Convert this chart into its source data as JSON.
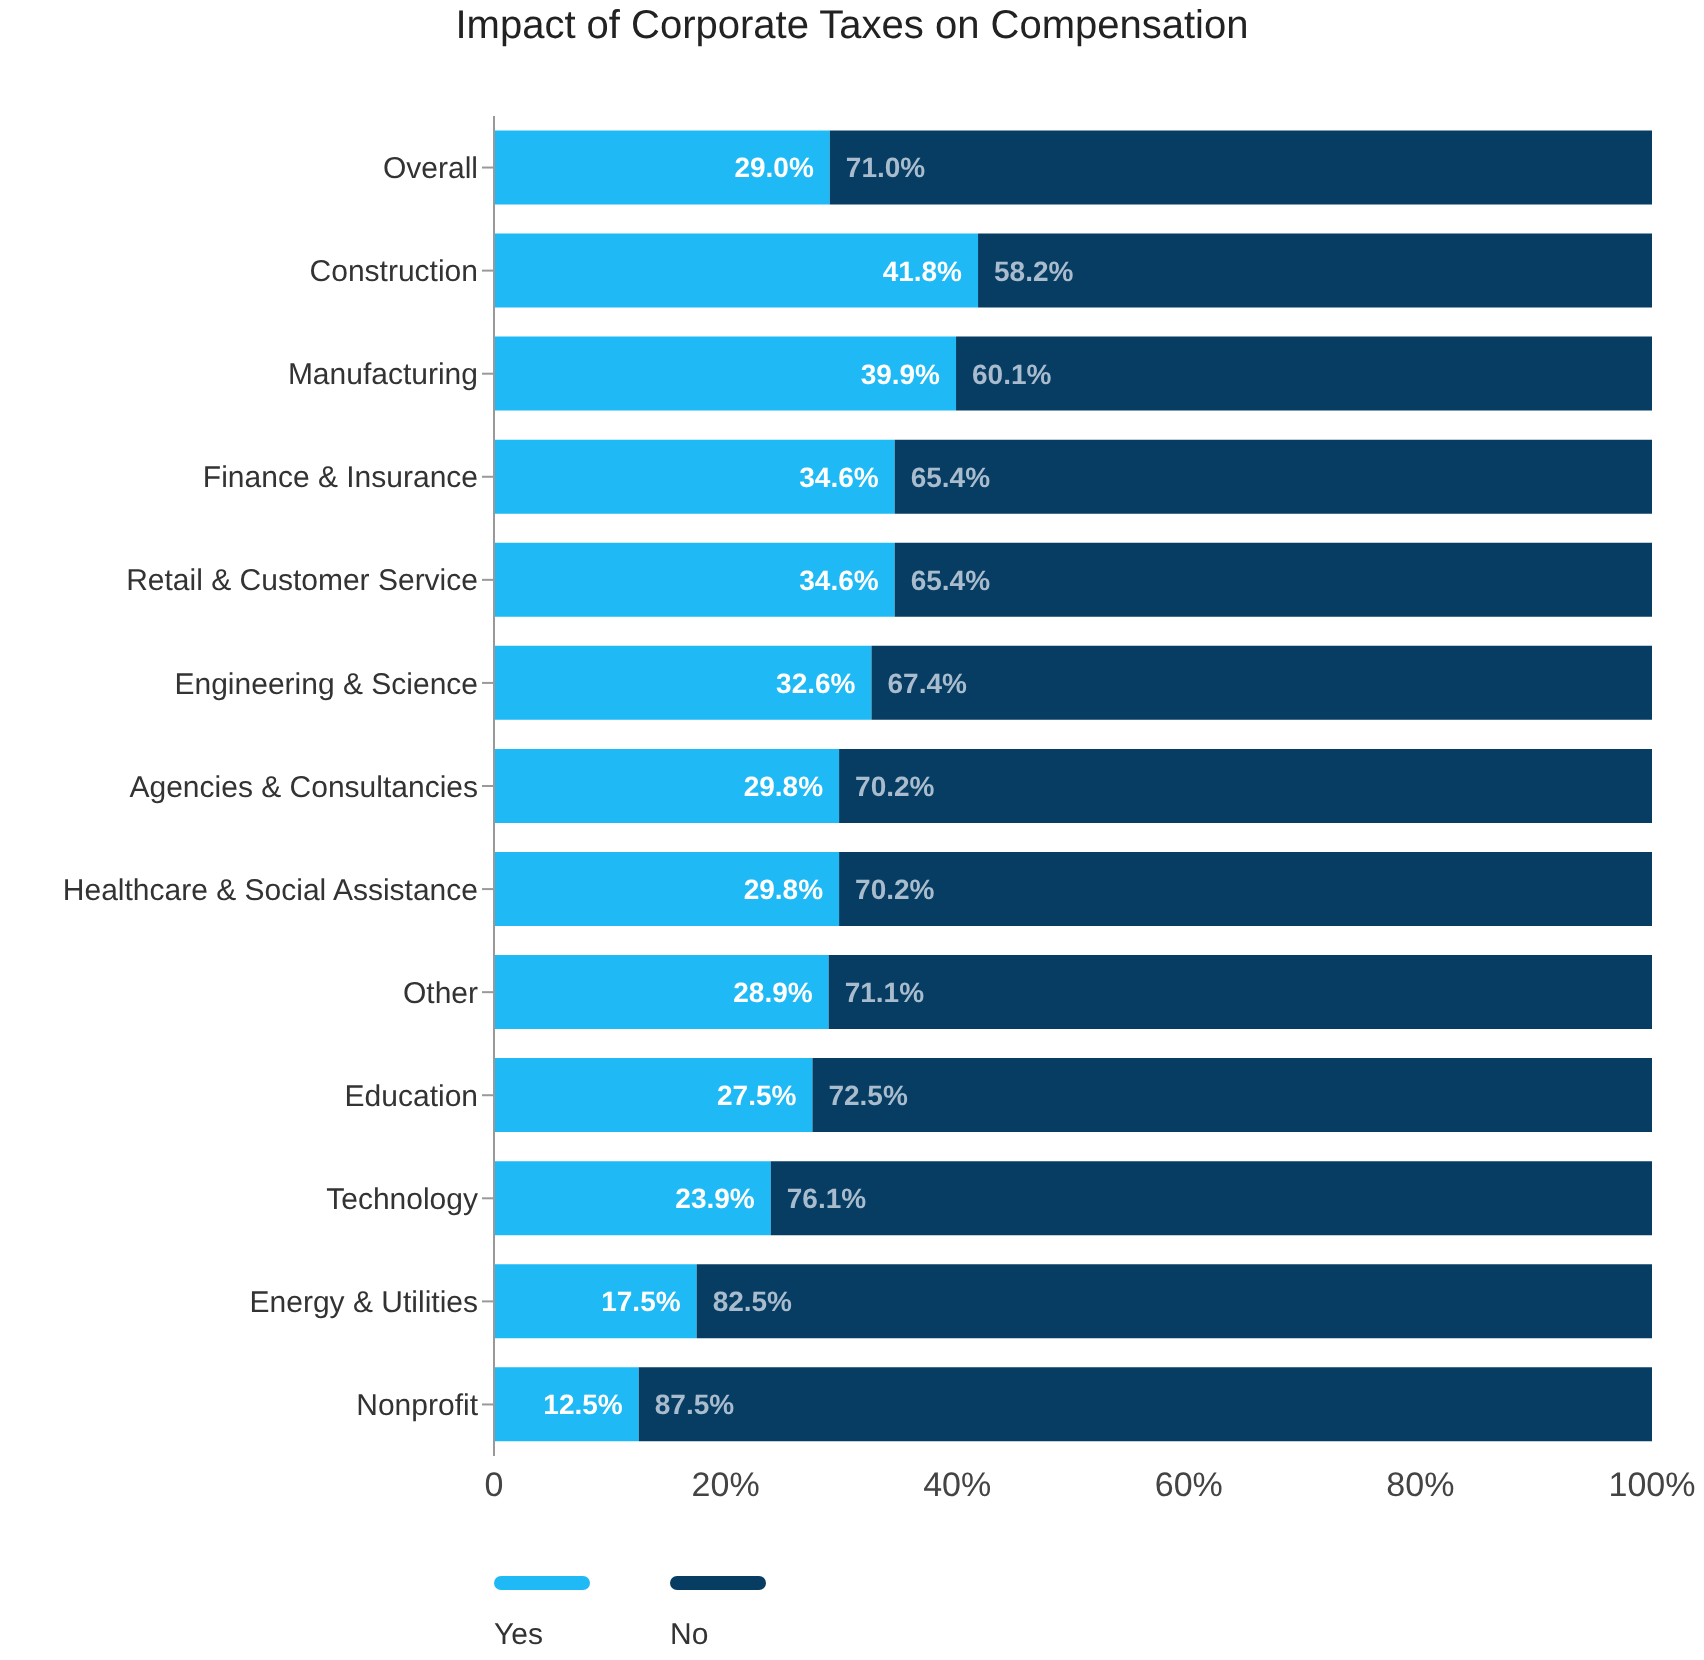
{
  "chart_data": {
    "type": "bar",
    "orientation": "horizontal",
    "stacked": true,
    "title": "Impact of Corporate Taxes on Compensation",
    "categories": [
      "Overall",
      "Construction",
      "Manufacturing",
      "Finance & Insurance",
      "Retail & Customer Service",
      "Engineering & Science",
      "Agencies & Consultancies",
      "Healthcare & Social Assistance",
      "Other",
      "Education",
      "Technology",
      "Energy & Utilities",
      "Nonprofit"
    ],
    "series": [
      {
        "name": "Yes",
        "color": "#1fbaf5",
        "values": [
          29.0,
          41.8,
          39.9,
          34.6,
          34.6,
          32.6,
          29.8,
          29.8,
          28.9,
          27.5,
          23.9,
          17.5,
          12.5
        ],
        "value_labels": [
          "29.0%",
          "41.8%",
          "39.9%",
          "34.6%",
          "34.6%",
          "32.6%",
          "29.8%",
          "29.8%",
          "28.9%",
          "27.5%",
          "23.9%",
          "17.5%",
          "12.5%"
        ]
      },
      {
        "name": "No",
        "color": "#083d63",
        "values": [
          71.0,
          58.2,
          60.1,
          65.4,
          65.4,
          67.4,
          70.2,
          70.2,
          71.1,
          72.5,
          76.1,
          82.5,
          87.5
        ],
        "value_labels": [
          "71.0%",
          "58.2%",
          "60.1%",
          "65.4%",
          "65.4%",
          "67.4%",
          "70.2%",
          "70.2%",
          "71.1%",
          "72.5%",
          "76.1%",
          "82.5%",
          "87.5%"
        ]
      }
    ],
    "xlim": [
      0,
      100
    ],
    "xticks": [
      0,
      {
        "value": 20,
        "label": "20%"
      },
      {
        "value": 40,
        "label": "40%"
      },
      {
        "value": 60,
        "label": "60%"
      },
      {
        "value": 80,
        "label": "80%"
      },
      {
        "value": 100,
        "label": "100%"
      }
    ],
    "legend": "bottom left"
  }
}
